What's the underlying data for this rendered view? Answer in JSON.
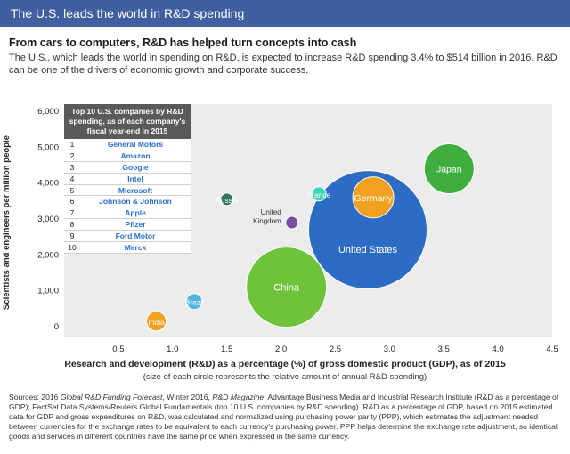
{
  "banner": {
    "title": "The U.S. leads the world in R&D spending"
  },
  "headline": "From cars to computers, R&D has helped turn concepts into cash",
  "intro": "The U.S., which leads the world in spending on R&D, is expected to increase R&D spending 3.4% to $514 billion in 2016. R&D can be one of the drivers of economic growth and corporate success.",
  "table": {
    "title": "Top 10 U.S. companies by R&D spending, as of each company's fiscal year-end in 2015",
    "rows": [
      {
        "rank": "1",
        "company": "General Motors"
      },
      {
        "rank": "2",
        "company": "Amazon"
      },
      {
        "rank": "3",
        "company": "Google"
      },
      {
        "rank": "4",
        "company": "Intel"
      },
      {
        "rank": "5",
        "company": "Microsoft"
      },
      {
        "rank": "6",
        "company": "Johnson & Johnson"
      },
      {
        "rank": "7",
        "company": "Apple"
      },
      {
        "rank": "8",
        "company": "Pfizer"
      },
      {
        "rank": "9",
        "company": "Ford Motor"
      },
      {
        "rank": "10",
        "company": "Merck"
      }
    ]
  },
  "chart_data": {
    "type": "scatter",
    "xlabel": "Research and development (R&D) as a percentage (%) of gross domestic product (GDP), as of 2015",
    "xnote": "(size of each circle represents the relative amount of annual R&D spending)",
    "ylabel": "Scientists and engineers per million people",
    "xlim": [
      0,
      4.5
    ],
    "ylim": [
      -300,
      6200
    ],
    "xticks": [
      "0.5",
      "1.0",
      "1.5",
      "2.0",
      "2.5",
      "3.0",
      "3.5",
      "4.0",
      "4.5"
    ],
    "yticks": [
      "0",
      "1,000",
      "2,000",
      "3,000",
      "4,000",
      "5,000",
      "6,000"
    ],
    "series": [
      {
        "name": "India",
        "x": 0.85,
        "y": 150,
        "size": 22,
        "color": "#f2a01f"
      },
      {
        "name": "Brazil",
        "x": 1.2,
        "y": 700,
        "size": 18,
        "color": "#52b6e0"
      },
      {
        "name": "Russia",
        "x": 1.5,
        "y": 3550,
        "size": 14,
        "color": "#2f7a5a"
      },
      {
        "name": "China",
        "x": 2.05,
        "y": 1100,
        "size": 90,
        "color": "#6fc33a"
      },
      {
        "name": "United Kingdom",
        "x": 2.1,
        "y": 2900,
        "size": 14,
        "color": "#7b4fa0"
      },
      {
        "name": "France",
        "x": 2.35,
        "y": 3700,
        "size": 16,
        "color": "#3fd4b8"
      },
      {
        "name": "United States",
        "x": 2.8,
        "y": 2700,
        "size": 133,
        "color": "#2d6cc4"
      },
      {
        "name": "Germany",
        "x": 2.85,
        "y": 3600,
        "size": 46,
        "color": "#f2a01f"
      },
      {
        "name": "Japan",
        "x": 3.55,
        "y": 4400,
        "size": 56,
        "color": "#3fae3f"
      }
    ]
  }
}
